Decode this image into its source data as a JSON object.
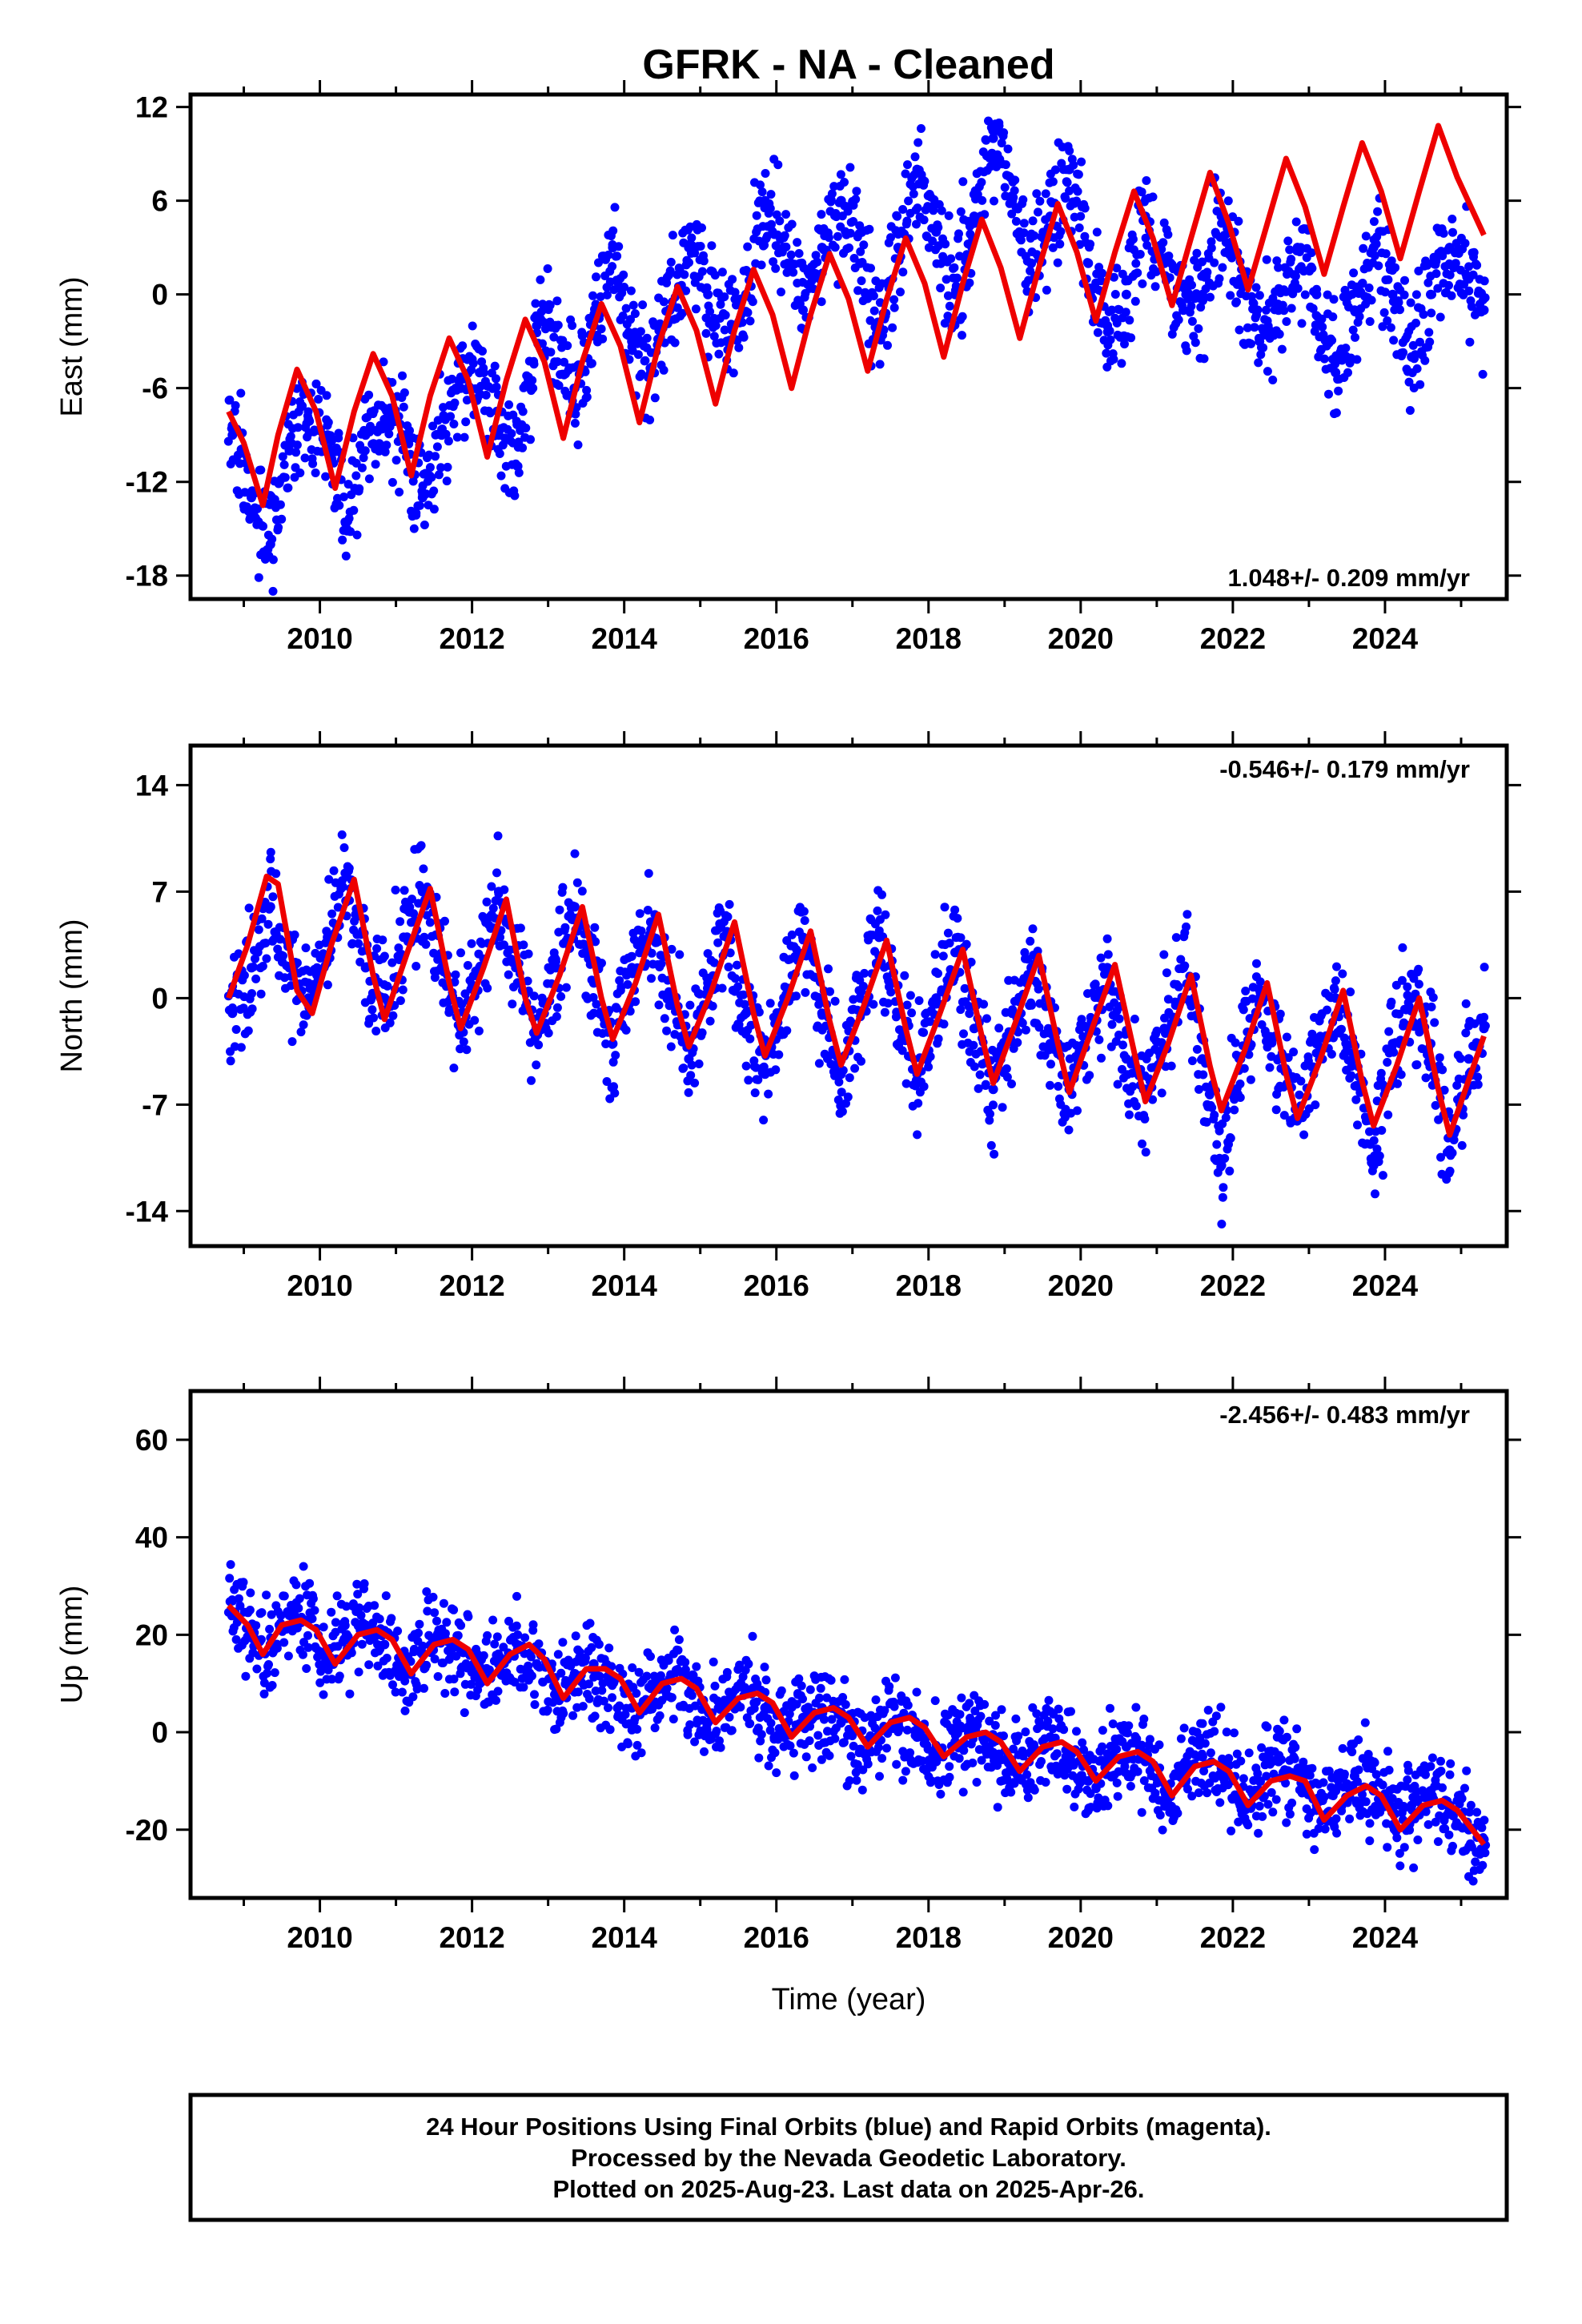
{
  "title": "GFRK  - NA - Cleaned",
  "colors": {
    "points": "#0000ff",
    "model": "#ee0000",
    "frame": "#000000"
  },
  "chart_data": [
    {
      "type": "scatter",
      "panel": "east",
      "ylabel": "East (mm)",
      "xlabel": "",
      "xlim": [
        2008.3,
        2025.6
      ],
      "ylim": [
        -19.5,
        12.8
      ],
      "xticks": [
        "2010",
        "2012",
        "2014",
        "2016",
        "2018",
        "2020",
        "2022",
        "2024"
      ],
      "yticks": [
        "12",
        "6",
        "0",
        "-6",
        "-12",
        "-18"
      ],
      "ytick_values": [
        12,
        6,
        0,
        -6,
        -12,
        -18
      ],
      "rate_text": "1.048+/- 0.209 mm/yr",
      "rate_position": "bottom-right",
      "series": [
        {
          "name": "",
          "kind": "daily positions",
          "color": "#0000ff",
          "x": [
            2008.85,
            2009.1,
            2009.35,
            2009.6,
            2009.85,
            2010.1,
            2010.35,
            2010.6,
            2010.85,
            2011.1,
            2011.35,
            2011.6,
            2011.85,
            2012.1,
            2012.35,
            2012.6,
            2012.85,
            2013.1,
            2013.35,
            2013.6,
            2013.85,
            2014.1,
            2014.35,
            2014.6,
            2014.85,
            2015.1,
            2015.35,
            2015.6,
            2015.85,
            2016.1,
            2016.35,
            2016.6,
            2016.85,
            2017.1,
            2017.35,
            2017.6,
            2017.85,
            2018.1,
            2018.35,
            2018.6,
            2018.85,
            2019.1,
            2019.35,
            2019.6,
            2019.85,
            2020.1,
            2020.35,
            2020.6,
            2020.85,
            2021.1,
            2021.35,
            2021.6,
            2021.85,
            2022.1,
            2022.35,
            2022.6,
            2022.85,
            2023.1,
            2023.35,
            2023.6,
            2023.85,
            2024.1,
            2024.35,
            2024.6,
            2024.85,
            2025.1,
            2025.3
          ],
          "y": [
            -9,
            -13,
            -16,
            -10,
            -8,
            -9,
            -15,
            -9,
            -8,
            -9,
            -13,
            -9,
            -6,
            -5,
            -9,
            -11,
            -2,
            -2,
            -6,
            -2,
            3,
            -3,
            -5,
            -1,
            3,
            0,
            -3,
            0,
            6,
            3,
            -1,
            3,
            6,
            2,
            -2,
            3,
            8,
            4,
            0,
            5,
            10,
            6,
            2,
            5,
            8,
            2,
            -2,
            0,
            5,
            2,
            -1,
            0,
            5,
            1,
            -3,
            -1,
            3,
            0,
            -5,
            -1,
            3,
            0,
            -4,
            0,
            3,
            1,
            -1
          ]
        },
        {
          "name": "",
          "kind": "model fit",
          "color": "#ee0000",
          "x": [
            2008.8,
            2009.0,
            2009.25,
            2009.45,
            2009.7,
            2009.95,
            2010.2,
            2010.45,
            2010.7,
            2010.95,
            2011.2,
            2011.45,
            2011.7,
            2011.95,
            2012.2,
            2012.45,
            2012.7,
            2012.95,
            2013.2,
            2013.45,
            2013.7,
            2013.95,
            2014.2,
            2014.45,
            2014.7,
            2014.95,
            2015.2,
            2015.45,
            2015.7,
            2015.95,
            2016.2,
            2016.45,
            2016.7,
            2016.95,
            2017.2,
            2017.45,
            2017.7,
            2017.95,
            2018.2,
            2018.45,
            2018.7,
            2018.95,
            2019.2,
            2019.45,
            2019.7,
            2019.95,
            2020.2,
            2020.45,
            2020.7,
            2020.95,
            2021.2,
            2021.45,
            2021.7,
            2021.95,
            2022.2,
            2022.45,
            2022.7,
            2022.95,
            2023.2,
            2023.45,
            2023.7,
            2023.95,
            2024.2,
            2024.45,
            2024.7,
            2024.95,
            2025.3
          ],
          "y": [
            -7.5,
            -9.5,
            -13.5,
            -9.0,
            -4.8,
            -7.5,
            -12.4,
            -7.5,
            -3.8,
            -6.5,
            -11.6,
            -6.5,
            -2.8,
            -5.5,
            -10.4,
            -5.5,
            -1.6,
            -4.3,
            -9.2,
            -4.3,
            -0.6,
            -3.3,
            -8.2,
            -3.3,
            0.5,
            -2.3,
            -7.0,
            -2.3,
            1.6,
            -1.3,
            -6.0,
            -1.3,
            2.6,
            -0.3,
            -4.9,
            -0.3,
            3.6,
            0.7,
            -4.0,
            0.7,
            4.8,
            1.7,
            -2.8,
            1.7,
            5.8,
            2.7,
            -1.7,
            2.7,
            6.6,
            3.6,
            -0.7,
            3.6,
            7.8,
            4.5,
            0.3,
            4.5,
            8.7,
            5.6,
            1.3,
            5.6,
            9.7,
            6.6,
            2.3,
            6.6,
            10.8,
            7.5,
            3.8
          ]
        }
      ]
    },
    {
      "type": "scatter",
      "panel": "north",
      "ylabel": "North (mm)",
      "xlabel": "",
      "xlim": [
        2008.3,
        2025.6
      ],
      "ylim": [
        -16.3,
        16.6
      ],
      "xticks": [
        "2010",
        "2012",
        "2014",
        "2016",
        "2018",
        "2020",
        "2022",
        "2024"
      ],
      "yticks": [
        "14",
        "7",
        "0",
        "-7",
        "-14"
      ],
      "ytick_values": [
        14,
        7,
        0,
        -7,
        -14
      ],
      "rate_text": "-0.546+/- 0.179 mm/yr",
      "rate_position": "top-right",
      "series": [
        {
          "name": "",
          "kind": "daily positions",
          "color": "#0000ff",
          "x": [
            2008.85,
            2009.1,
            2009.35,
            2009.6,
            2009.85,
            2010.1,
            2010.35,
            2010.6,
            2010.85,
            2011.1,
            2011.35,
            2011.6,
            2011.85,
            2012.1,
            2012.35,
            2012.6,
            2012.85,
            2013.1,
            2013.35,
            2013.6,
            2013.85,
            2014.1,
            2014.35,
            2014.6,
            2014.85,
            2015.1,
            2015.35,
            2015.6,
            2015.85,
            2016.1,
            2016.35,
            2016.6,
            2016.85,
            2017.1,
            2017.35,
            2017.6,
            2017.85,
            2018.1,
            2018.35,
            2018.6,
            2018.85,
            2019.1,
            2019.35,
            2019.6,
            2019.85,
            2020.1,
            2020.35,
            2020.6,
            2020.85,
            2021.1,
            2021.35,
            2021.6,
            2021.85,
            2022.1,
            2022.35,
            2022.6,
            2022.85,
            2023.1,
            2023.35,
            2023.6,
            2023.85,
            2024.1,
            2024.35,
            2024.6,
            2024.85,
            2025.1,
            2025.3
          ],
          "y": [
            -1,
            2,
            6,
            2,
            0,
            4,
            8,
            2,
            0,
            4,
            7,
            2,
            -2,
            2,
            7,
            1,
            -2,
            2,
            6,
            1,
            -3,
            2,
            5,
            0,
            -4,
            1,
            4,
            -1,
            -5,
            0,
            4,
            -1,
            -5,
            0,
            4,
            -1,
            -5,
            0,
            3,
            -2,
            -6,
            -1,
            2,
            -3,
            -6,
            -2,
            2,
            -4,
            -6,
            -2,
            2,
            -4,
            -11,
            -4,
            0,
            -4,
            -8,
            -3,
            0,
            -4,
            -11,
            -3,
            0,
            -3,
            -10,
            -4,
            -2
          ]
        },
        {
          "name": "",
          "kind": "model fit",
          "color": "#ee0000",
          "x": [
            2008.8,
            2009.05,
            2009.3,
            2009.45,
            2009.7,
            2009.9,
            2010.15,
            2010.45,
            2010.7,
            2010.85,
            2011.15,
            2011.45,
            2011.7,
            2011.85,
            2012.15,
            2012.45,
            2012.7,
            2012.85,
            2013.15,
            2013.45,
            2013.7,
            2013.85,
            2014.15,
            2014.45,
            2014.7,
            2014.85,
            2015.15,
            2015.45,
            2015.7,
            2015.85,
            2016.15,
            2016.45,
            2016.7,
            2016.85,
            2017.15,
            2017.45,
            2017.7,
            2017.85,
            2018.15,
            2018.45,
            2018.7,
            2018.85,
            2019.15,
            2019.45,
            2019.7,
            2019.85,
            2020.15,
            2020.45,
            2020.7,
            2020.85,
            2021.15,
            2021.45,
            2021.7,
            2021.85,
            2022.15,
            2022.45,
            2022.7,
            2022.85,
            2023.15,
            2023.45,
            2023.7,
            2023.85,
            2024.15,
            2024.45,
            2024.7,
            2024.85,
            2025.3
          ],
          "y": [
            0.0,
            3.5,
            8.0,
            7.5,
            0.5,
            -1.0,
            3.5,
            7.8,
            1.5,
            -1.4,
            3.0,
            7.2,
            1.0,
            -2.0,
            2.0,
            6.5,
            0.0,
            -2.3,
            1.5,
            6.0,
            0.0,
            -2.7,
            1.0,
            5.5,
            -0.5,
            -3.2,
            0.5,
            5.0,
            -1.0,
            -3.8,
            0.0,
            4.4,
            -1.5,
            -4.4,
            -0.5,
            3.8,
            -2.0,
            -5.0,
            -1.0,
            3.2,
            -2.5,
            -5.6,
            -1.5,
            2.8,
            -3.0,
            -6.2,
            -2.0,
            2.2,
            -3.5,
            -6.8,
            -3.0,
            1.5,
            -4.5,
            -7.4,
            -3.5,
            1.0,
            -5.0,
            -7.9,
            -4.0,
            0.5,
            -5.5,
            -8.4,
            -4.5,
            0.0,
            -6.0,
            -9.0,
            -2.5
          ]
        }
      ]
    },
    {
      "type": "scatter",
      "panel": "up",
      "ylabel": "Up (mm)",
      "xlabel": "Time (year)",
      "xlim": [
        2008.3,
        2025.6
      ],
      "ylim": [
        -34,
        70
      ],
      "xticks": [
        "2010",
        "2012",
        "2014",
        "2016",
        "2018",
        "2020",
        "2022",
        "2024"
      ],
      "yticks": [
        "60",
        "40",
        "20",
        "0",
        "-20"
      ],
      "ytick_values": [
        60,
        40,
        20,
        0,
        -20
      ],
      "rate_text": "-2.456+/- 0.483 mm/yr",
      "rate_position": "top-right",
      "series": [
        {
          "name": "",
          "kind": "daily positions",
          "color": "#0000ff",
          "x": [
            2008.85,
            2009.1,
            2009.35,
            2009.6,
            2009.85,
            2010.1,
            2010.35,
            2010.6,
            2010.85,
            2011.1,
            2011.35,
            2011.6,
            2011.85,
            2012.1,
            2012.35,
            2012.6,
            2012.85,
            2013.1,
            2013.35,
            2013.6,
            2013.85,
            2014.1,
            2014.35,
            2014.6,
            2014.85,
            2015.1,
            2015.35,
            2015.6,
            2015.85,
            2016.1,
            2016.35,
            2016.6,
            2016.85,
            2017.1,
            2017.35,
            2017.6,
            2017.85,
            2018.1,
            2018.35,
            2018.6,
            2018.85,
            2019.1,
            2019.35,
            2019.6,
            2019.85,
            2020.1,
            2020.35,
            2020.6,
            2020.85,
            2021.1,
            2021.35,
            2021.6,
            2021.85,
            2022.1,
            2022.35,
            2022.6,
            2022.85,
            2023.1,
            2023.35,
            2023.6,
            2023.85,
            2024.1,
            2024.35,
            2024.6,
            2024.85,
            2025.1,
            2025.3
          ],
          "y": [
            27,
            20,
            18,
            24,
            23,
            16,
            20,
            22,
            18,
            12,
            16,
            19,
            17,
            10,
            14,
            17,
            14,
            8,
            12,
            14,
            11,
            5,
            9,
            11,
            8,
            2,
            6,
            8,
            5,
            -1,
            3,
            5,
            2,
            -4,
            0,
            2,
            -1,
            -6,
            -2,
            0,
            -2,
            -8,
            -4,
            -1,
            -4,
            -10,
            -6,
            -3,
            -6,
            -12,
            -8,
            -5,
            -7,
            -14,
            -10,
            -6,
            -8,
            -16,
            -12,
            -9,
            -12,
            -19,
            -15,
            -12,
            -15,
            -20,
            -22
          ]
        },
        {
          "name": "",
          "kind": "model fit",
          "color": "#ee0000",
          "x": [
            2008.8,
            2009.05,
            2009.25,
            2009.5,
            2009.75,
            2009.95,
            2010.2,
            2010.5,
            2010.75,
            2010.95,
            2011.2,
            2011.5,
            2011.75,
            2011.95,
            2012.2,
            2012.5,
            2012.75,
            2012.95,
            2013.2,
            2013.5,
            2013.75,
            2013.95,
            2014.2,
            2014.5,
            2014.75,
            2014.95,
            2015.2,
            2015.5,
            2015.75,
            2015.95,
            2016.2,
            2016.5,
            2016.75,
            2016.95,
            2017.2,
            2017.5,
            2017.75,
            2017.95,
            2018.2,
            2018.5,
            2018.75,
            2018.95,
            2019.2,
            2019.5,
            2019.75,
            2019.95,
            2020.2,
            2020.5,
            2020.75,
            2020.95,
            2021.2,
            2021.5,
            2021.75,
            2021.95,
            2022.2,
            2022.5,
            2022.75,
            2022.95,
            2023.2,
            2023.5,
            2023.75,
            2023.95,
            2024.2,
            2024.5,
            2024.75,
            2024.95,
            2025.3
          ],
          "y": [
            26,
            22,
            16,
            22,
            23,
            21,
            14,
            20,
            21,
            19,
            12,
            18,
            19,
            17,
            10,
            16,
            18,
            15,
            7,
            13,
            13,
            11,
            4,
            10,
            11,
            9,
            2,
            7,
            8,
            6,
            -1,
            4,
            5,
            3,
            -3,
            2,
            3,
            1,
            -5,
            -1,
            0,
            -2,
            -8,
            -3,
            -2,
            -4,
            -10,
            -5,
            -4,
            -6,
            -13,
            -7,
            -6,
            -8,
            -15,
            -10,
            -9,
            -10,
            -18,
            -13,
            -11,
            -13,
            -20,
            -15,
            -14,
            -16,
            -23
          ]
        }
      ]
    }
  ],
  "footer": {
    "line1": "24 Hour Positions Using Final Orbits (blue) and Rapid Orbits (magenta).",
    "line2": "Processed by the Nevada Geodetic Laboratory.",
    "line3": "Plotted on 2025-Aug-23. Last data on 2025-Apr-26."
  }
}
